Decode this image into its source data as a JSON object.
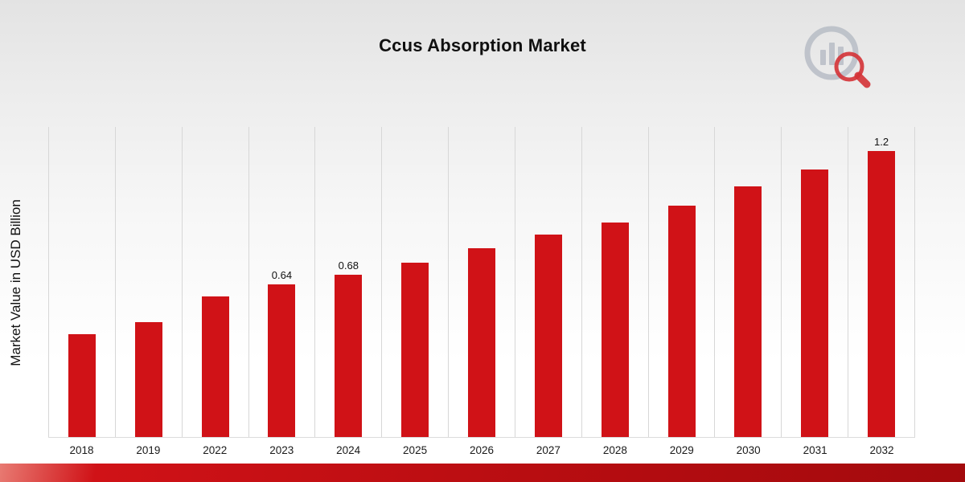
{
  "title": "Ccus Absorption Market",
  "colors": {
    "bar": "#d01217",
    "band": "#b80d11",
    "logo_gray": "#b8bdc6"
  },
  "chart_data": {
    "type": "bar",
    "title": "Ccus Absorption Market",
    "xlabel": "",
    "ylabel": "Market Value in USD Billion",
    "categories": [
      "2018",
      "2019",
      "2022",
      "2023",
      "2024",
      "2025",
      "2026",
      "2027",
      "2028",
      "2029",
      "2030",
      "2031",
      "2032"
    ],
    "values": [
      0.43,
      0.48,
      0.59,
      0.64,
      0.68,
      0.73,
      0.79,
      0.85,
      0.9,
      0.97,
      1.05,
      1.12,
      1.2
    ],
    "data_labels": [
      "",
      "",
      "",
      "0.64",
      "0.68",
      "",
      "",
      "",
      "",
      "",
      "",
      "",
      "1.2"
    ],
    "ylim": [
      0,
      1.3
    ],
    "grid": "vertical",
    "legend": "none",
    "bar_color": "#d01217"
  }
}
